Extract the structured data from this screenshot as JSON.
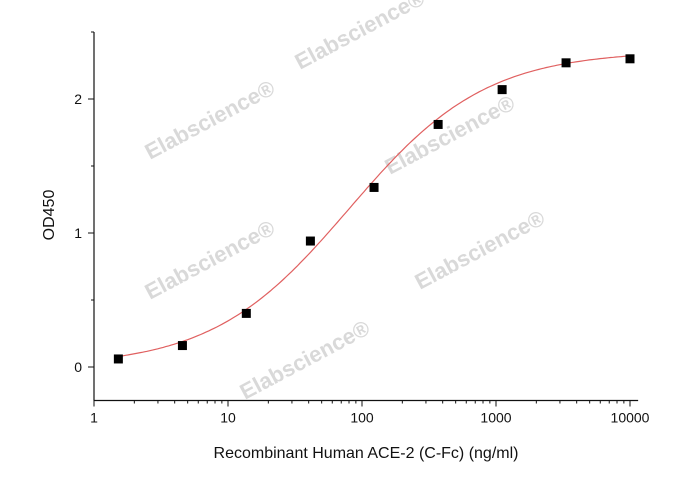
{
  "chart_data": {
    "type": "scatter",
    "title": "",
    "xlabel": "Recombinant Human ACE-2 (C-Fc) (ng/ml)",
    "ylabel": "OD450",
    "xscale": "log",
    "xlim": [
      1,
      11500
    ],
    "ylim": [
      -0.25,
      2.5
    ],
    "x_ticks": [
      "1",
      "10",
      "100",
      "1000",
      "10000"
    ],
    "y_ticks": [
      "0",
      "1",
      "2"
    ],
    "grid": false,
    "legend": "none",
    "series": [
      {
        "marker": "square",
        "color": "#000000",
        "x": [
          1.52,
          4.57,
          13.7,
          41.2,
          123,
          370,
          1111,
          3333,
          10000
        ],
        "y": [
          0.06,
          0.16,
          0.4,
          0.94,
          1.34,
          1.81,
          2.07,
          2.27,
          2.3
        ]
      }
    ],
    "fit_curve": {
      "type": "4-parameter logistic",
      "color": "#e06060"
    },
    "watermark": "Elabscience®"
  }
}
